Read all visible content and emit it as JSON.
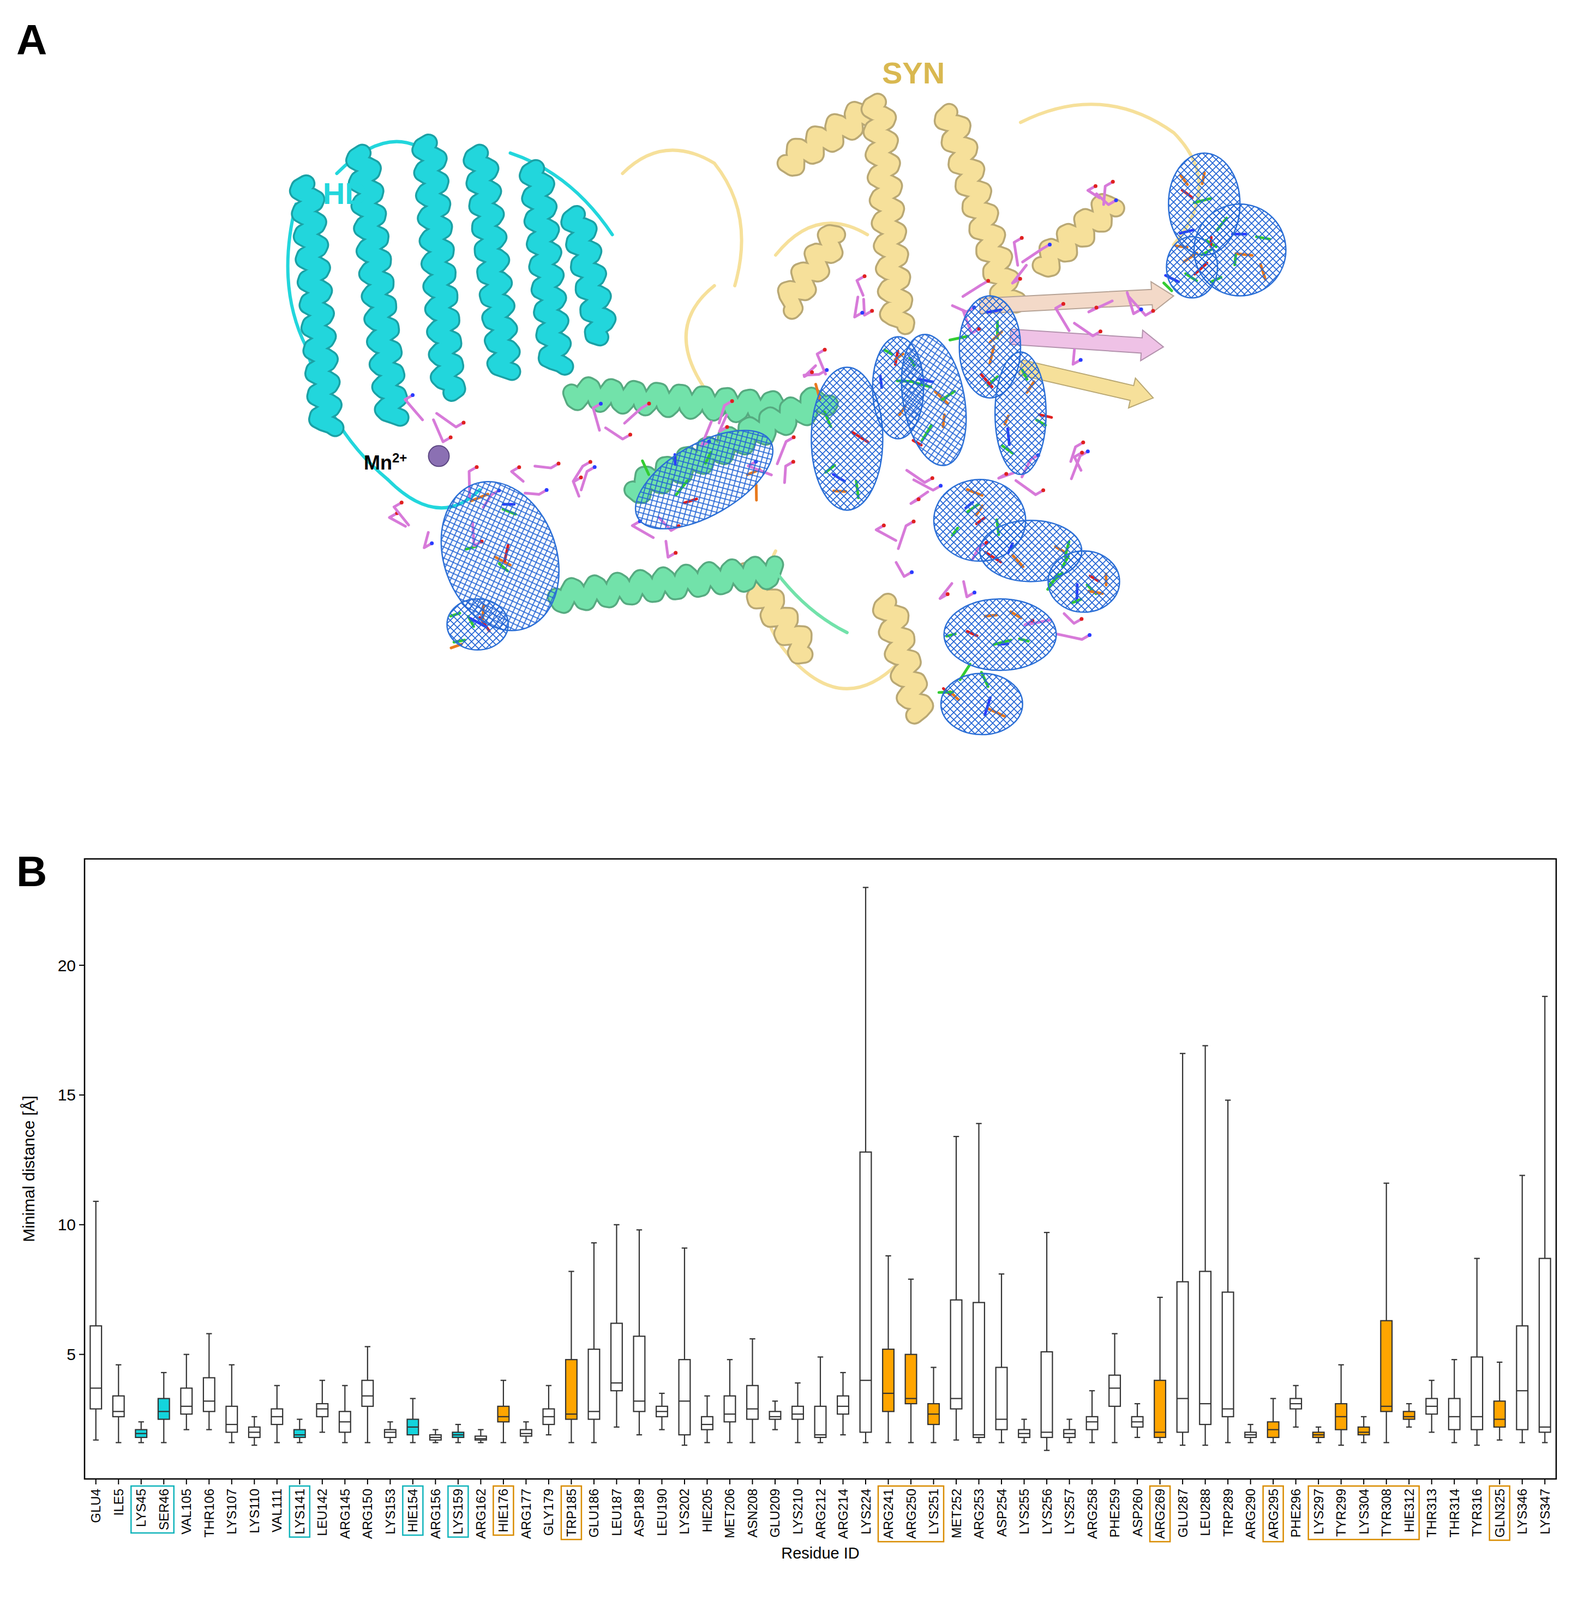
{
  "panel_a": {
    "panel_label": "A",
    "domain_labels": [
      {
        "text": "HD",
        "color": "#22d6dc"
      },
      {
        "text": "SYN",
        "color": "#d9b850"
      }
    ],
    "ion_label": {
      "text": "Mn",
      "superscript": "2+"
    }
  },
  "chart_data": {
    "type": "box",
    "panel_label": "B",
    "x_label": "Residue ID",
    "y_label": "Minimal distance [Å]",
    "categories": [
      "GLU4",
      "ILE5",
      "LYS45",
      "SER46",
      "VAL105",
      "THR106",
      "LYS107",
      "LYS110",
      "VAL111",
      "LYS141",
      "LEU142",
      "ARG145",
      "ARG150",
      "LYS153",
      "HIE154",
      "ARG156",
      "LYS159",
      "ARG162",
      "HIE176",
      "ARG177",
      "GLY179",
      "TRP185",
      "GLU186",
      "LEU187",
      "ASP189",
      "LEU190",
      "LYS202",
      "HIE205",
      "MET206",
      "ASN208",
      "GLU209",
      "LYS210",
      "ARG212",
      "ARG214",
      "LYS224",
      "ARG241",
      "ARG250",
      "LYS251",
      "MET252",
      "ARG253",
      "ASP254",
      "LYS255",
      "LYS256",
      "LYS257",
      "ARG258",
      "PHE259",
      "ASP260",
      "ARG269",
      "GLU287",
      "LEU288",
      "TRP289",
      "ARG290",
      "ARG295",
      "PHE296",
      "LYS297",
      "TYR299",
      "LYS304",
      "TYR308",
      "HIE312",
      "THR313",
      "THR314",
      "TYR316",
      "GLN325",
      "LYS346",
      "LYS347"
    ],
    "whisker_low": [
      1.7,
      1.6,
      1.6,
      1.6,
      2.1,
      2.1,
      1.6,
      1.5,
      1.6,
      1.6,
      2.0,
      1.6,
      1.6,
      1.6,
      1.6,
      1.6,
      1.6,
      1.6,
      1.6,
      1.6,
      1.9,
      1.6,
      1.6,
      2.2,
      1.9,
      2.1,
      1.5,
      1.6,
      1.6,
      1.6,
      2.1,
      1.6,
      1.6,
      1.9,
      1.6,
      1.6,
      1.6,
      1.6,
      1.7,
      1.6,
      1.6,
      1.6,
      1.3,
      1.6,
      1.6,
      1.6,
      1.8,
      1.6,
      1.5,
      1.5,
      1.6,
      1.6,
      1.6,
      2.2,
      1.6,
      1.5,
      1.6,
      1.6,
      2.2,
      2.0,
      1.6,
      1.5,
      1.7,
      1.6,
      1.6
    ],
    "q1": [
      2.9,
      2.6,
      1.8,
      2.5,
      2.7,
      2.8,
      2.0,
      1.8,
      2.3,
      1.8,
      2.6,
      2.0,
      3.0,
      1.8,
      1.9,
      1.7,
      1.8,
      1.7,
      2.4,
      1.85,
      2.3,
      2.5,
      2.5,
      3.6,
      2.8,
      2.6,
      1.9,
      2.1,
      2.4,
      2.5,
      2.5,
      2.5,
      1.8,
      2.7,
      2.0,
      2.8,
      3.1,
      2.3,
      2.9,
      1.8,
      2.1,
      1.8,
      1.8,
      1.8,
      2.1,
      3.0,
      2.2,
      1.8,
      2.0,
      2.3,
      2.6,
      1.8,
      1.8,
      2.9,
      1.8,
      2.1,
      1.9,
      2.8,
      2.5,
      2.7,
      2.1,
      2.1,
      2.2,
      2.1,
      2.0
    ],
    "median": [
      3.7,
      2.8,
      1.95,
      2.8,
      3.0,
      3.2,
      2.3,
      2.0,
      2.6,
      1.9,
      2.9,
      2.4,
      3.4,
      2.0,
      2.2,
      1.8,
      1.9,
      1.75,
      2.6,
      1.95,
      2.6,
      2.7,
      2.8,
      3.9,
      3.2,
      2.8,
      3.2,
      2.3,
      2.7,
      2.9,
      2.6,
      2.7,
      1.9,
      3.0,
      4.0,
      3.5,
      3.3,
      2.7,
      3.3,
      1.9,
      2.5,
      1.95,
      2.0,
      1.95,
      2.4,
      3.7,
      2.4,
      2.0,
      3.3,
      3.1,
      2.9,
      1.9,
      2.1,
      3.1,
      1.9,
      2.6,
      2.0,
      3.0,
      2.6,
      3.0,
      2.6,
      2.6,
      2.5,
      3.6,
      2.2
    ],
    "q3": [
      6.1,
      3.4,
      2.1,
      3.3,
      3.7,
      4.1,
      3.0,
      2.2,
      2.9,
      2.1,
      3.1,
      2.8,
      4.0,
      2.1,
      2.5,
      1.9,
      2.0,
      1.85,
      3.0,
      2.1,
      2.9,
      4.8,
      5.2,
      6.2,
      5.7,
      3.0,
      4.8,
      2.6,
      3.4,
      3.8,
      2.8,
      3.0,
      3.0,
      3.4,
      12.8,
      5.2,
      5.0,
      3.1,
      7.1,
      7.0,
      4.5,
      2.1,
      5.1,
      2.1,
      2.6,
      4.2,
      2.6,
      4.0,
      7.8,
      8.2,
      7.4,
      2.0,
      2.4,
      3.3,
      2.0,
      3.1,
      2.2,
      6.3,
      2.8,
      3.3,
      3.3,
      4.9,
      3.2,
      6.1,
      8.7
    ],
    "whisker_high": [
      10.9,
      4.6,
      2.4,
      4.3,
      5.0,
      5.8,
      4.6,
      2.6,
      3.8,
      2.5,
      4.0,
      3.8,
      5.3,
      2.4,
      3.3,
      2.1,
      2.3,
      2.1,
      4.0,
      2.4,
      3.8,
      8.2,
      9.3,
      10.0,
      9.8,
      3.5,
      9.1,
      3.4,
      4.8,
      5.6,
      3.2,
      3.9,
      4.9,
      4.3,
      23.0,
      8.8,
      7.9,
      4.5,
      13.4,
      13.9,
      8.1,
      2.5,
      9.7,
      2.5,
      3.6,
      5.8,
      3.1,
      7.2,
      16.6,
      16.9,
      14.8,
      2.3,
      3.3,
      3.8,
      2.2,
      4.6,
      2.6,
      11.6,
      3.1,
      4.0,
      4.8,
      8.7,
      4.7,
      11.9,
      18.8
    ],
    "colors": [
      "#ffffff",
      "#ffffff",
      "#14d4dc",
      "#14d4dc",
      "#ffffff",
      "#ffffff",
      "#ffffff",
      "#ffffff",
      "#ffffff",
      "#14d4dc",
      "#ffffff",
      "#ffffff",
      "#ffffff",
      "#ffffff",
      "#14d4dc",
      "#ffffff",
      "#14d4dc",
      "#ffffff",
      "#ffa500",
      "#ffffff",
      "#ffffff",
      "#ffa500",
      "#ffffff",
      "#ffffff",
      "#ffffff",
      "#ffffff",
      "#ffffff",
      "#ffffff",
      "#ffffff",
      "#ffffff",
      "#ffffff",
      "#ffffff",
      "#ffffff",
      "#ffffff",
      "#ffffff",
      "#ffa500",
      "#ffa500",
      "#ffa500",
      "#ffffff",
      "#ffffff",
      "#ffffff",
      "#ffffff",
      "#ffffff",
      "#ffffff",
      "#ffffff",
      "#ffffff",
      "#ffffff",
      "#ffa500",
      "#ffffff",
      "#ffffff",
      "#ffffff",
      "#ffffff",
      "#ffa500",
      "#ffffff",
      "#ffa500",
      "#ffa500",
      "#ffa500",
      "#ffa500",
      "#ffa500",
      "#ffffff",
      "#ffffff",
      "#ffffff",
      "#ffa500",
      "#ffffff",
      "#ffffff"
    ],
    "ylim": [
      0.2,
      24.1
    ],
    "yticks": [
      5,
      10,
      15,
      20
    ],
    "grid": false
  }
}
